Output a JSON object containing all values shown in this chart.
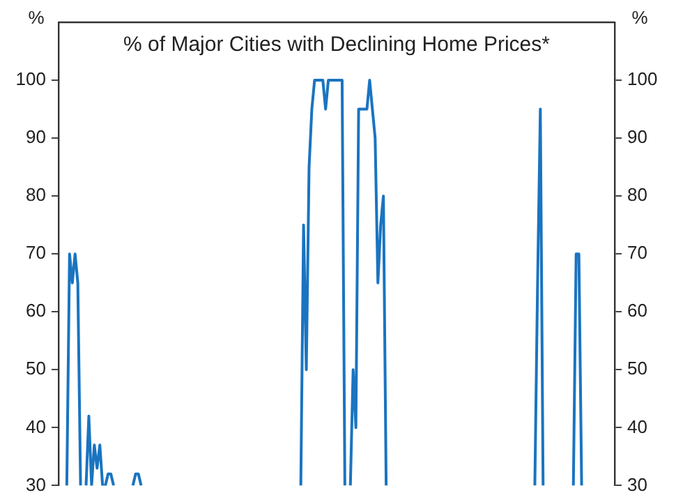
{
  "chart_data": {
    "type": "line",
    "title": "% of Major Cities with Declining Home Prices*",
    "ylabel": "%",
    "y2label": "%",
    "categories": [
      null,
      null,
      null,
      null,
      null,
      null,
      null,
      null,
      null,
      null,
      null,
      null,
      null,
      null,
      null,
      null,
      null,
      null,
      null,
      null,
      null,
      null,
      null,
      null,
      null,
      null,
      null,
      null,
      null,
      null,
      null,
      null,
      null,
      null,
      null,
      null,
      null,
      null,
      null,
      null,
      null,
      null,
      null,
      null,
      null,
      null,
      null,
      null,
      null,
      null,
      null,
      null,
      null,
      null,
      null,
      null,
      null,
      null,
      null,
      null,
      null,
      null,
      null,
      null,
      null,
      null,
      null,
      null,
      null,
      null,
      null,
      null,
      null,
      null,
      null,
      null,
      null,
      null,
      null,
      null,
      null,
      null,
      null,
      null,
      null,
      null,
      null,
      null,
      null,
      null,
      null,
      null,
      null,
      null,
      null,
      null,
      null,
      null,
      null,
      null,
      null,
      null,
      null,
      null,
      null,
      null,
      null,
      null,
      null,
      null,
      null,
      null,
      null,
      null,
      null,
      null,
      null,
      null,
      null,
      null,
      null,
      null,
      null,
      null,
      null,
      null,
      null,
      null,
      null,
      null,
      null,
      null,
      null,
      null,
      null,
      null,
      null,
      null,
      null,
      null,
      null,
      null,
      null,
      null,
      null,
      null,
      null,
      null,
      null,
      null,
      null,
      null,
      null,
      null,
      null,
      null,
      null,
      null,
      null,
      null,
      null,
      null,
      null,
      null,
      null,
      null,
      null,
      null,
      null,
      null,
      null,
      null,
      null,
      null,
      null,
      null,
      null,
      null,
      null,
      null,
      null,
      null,
      null,
      null,
      null,
      null,
      null,
      null,
      null,
      null,
      null,
      null,
      null,
      null,
      null,
      null,
      null,
      null,
      null,
      null,
      null,
      null,
      null
    ],
    "series": [
      {
        "color": "#1a74c0",
        "values": [
          null,
          null,
          null,
          30,
          70,
          65,
          70,
          65,
          30,
          null,
          30,
          42,
          30,
          37,
          33,
          37,
          30,
          30,
          32,
          32,
          30,
          null,
          null,
          null,
          null,
          null,
          null,
          30,
          32,
          32,
          30,
          null,
          null,
          null,
          null,
          null,
          null,
          null,
          null,
          null,
          null,
          null,
          null,
          null,
          null,
          null,
          null,
          null,
          null,
          null,
          null,
          null,
          null,
          null,
          null,
          null,
          null,
          null,
          null,
          null,
          null,
          null,
          null,
          null,
          null,
          null,
          null,
          null,
          null,
          null,
          null,
          null,
          null,
          null,
          null,
          null,
          null,
          null,
          null,
          null,
          null,
          null,
          null,
          null,
          null,
          null,
          null,
          null,
          30,
          75,
          50,
          85,
          95,
          100,
          100,
          100,
          100,
          95,
          100,
          100,
          100,
          100,
          100,
          100,
          30,
          null,
          30,
          50,
          40,
          95,
          95,
          95,
          95,
          100,
          95,
          90,
          65,
          75,
          80,
          30,
          null,
          null,
          null,
          null,
          null,
          null,
          null,
          null,
          null,
          null,
          null,
          null,
          null,
          null,
          null,
          null,
          null,
          null,
          null,
          null,
          null,
          null,
          null,
          null,
          null,
          null,
          null,
          null,
          null,
          null,
          null,
          null,
          null,
          null,
          null,
          null,
          null,
          null,
          null,
          null,
          null,
          null,
          null,
          null,
          null,
          null,
          null,
          null,
          null,
          null,
          null,
          null,
          null,
          30,
          65,
          95,
          30,
          null,
          null,
          null,
          null,
          null,
          null,
          null,
          null,
          null,
          null,
          30,
          70,
          70,
          30,
          null,
          null,
          null,
          null,
          null,
          null,
          null,
          null,
          null,
          null,
          null,
          null
        ]
      }
    ],
    "ylim": [
      30,
      110
    ],
    "yticks": [
      30,
      40,
      50,
      60,
      70,
      80,
      90,
      100
    ],
    "y2lim": [
      30,
      110
    ],
    "y2ticks": [
      30,
      40,
      50,
      60,
      70,
      80,
      90,
      100
    ],
    "grid": false,
    "legend": false,
    "tick_labels": "y",
    "marker": "none",
    "line_style": "solid"
  }
}
